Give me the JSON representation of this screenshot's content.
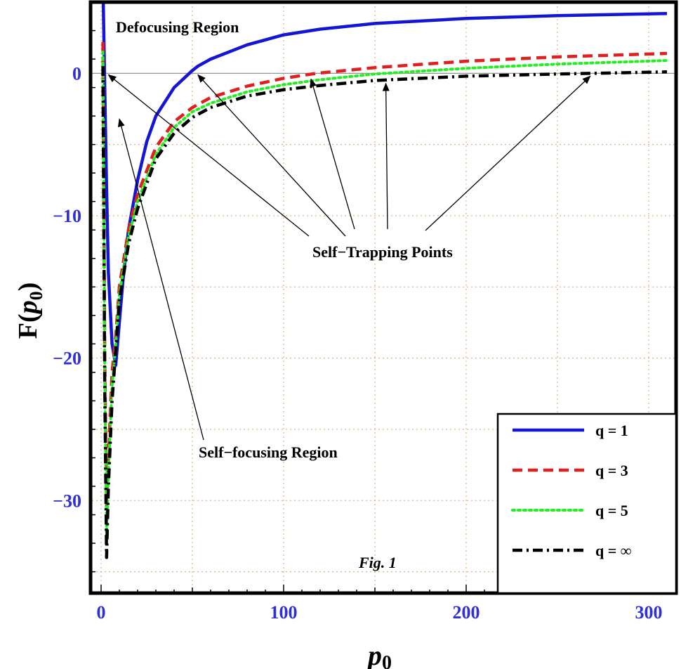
{
  "chart_data": {
    "type": "line",
    "title": "",
    "xlabel": "p",
    "xlabel_sub": "0",
    "ylabel_prefix": "F(",
    "ylabel_var": "p",
    "ylabel_sub": "0",
    "ylabel_suffix": ")",
    "xlim": [
      -5,
      315
    ],
    "ylim": [
      -36.5,
      5
    ],
    "x_ticks": [
      0,
      100,
      200,
      300
    ],
    "x_tick_labels": [
      "0",
      "100",
      "200",
      "300"
    ],
    "y_ticks": [
      0,
      -10,
      -20,
      -30
    ],
    "y_tick_labels": [
      "0",
      "−10",
      "−20",
      "−30"
    ],
    "grid": true,
    "legend_position": "bottom-right",
    "series": [
      {
        "name": "q = 1",
        "color": "#1515d4",
        "style": "solid",
        "x": [
          1.2,
          2,
          3,
          4,
          6,
          8,
          10,
          12,
          15,
          20,
          25,
          30,
          40,
          50,
          53,
          60,
          80,
          100,
          120,
          150,
          200,
          250,
          310
        ],
        "y": [
          5,
          -1,
          -8,
          -14,
          -19,
          -20.5,
          -17.5,
          -14.5,
          -11,
          -7.5,
          -4.8,
          -3,
          -1,
          0.2,
          0.5,
          1,
          2,
          2.7,
          3.1,
          3.5,
          3.85,
          4.05,
          4.2
        ]
      },
      {
        "name": "q = 3",
        "color": "#e02020",
        "style": "dashed",
        "x": [
          1,
          2,
          3,
          4,
          6,
          8,
          10,
          15,
          20,
          30,
          40,
          50,
          60,
          80,
          100,
          118,
          150,
          200,
          250,
          310
        ],
        "y": [
          2.2,
          -20,
          -30.5,
          -27,
          -21,
          -18.5,
          -15,
          -11,
          -8.5,
          -5.2,
          -3.4,
          -2.4,
          -1.7,
          -0.9,
          -0.35,
          0,
          0.4,
          0.85,
          1.15,
          1.4
        ]
      },
      {
        "name": "q = 5",
        "color": "#22ee22",
        "style": "dotted",
        "x": [
          1,
          2,
          3,
          4,
          6,
          8,
          10,
          15,
          20,
          30,
          40,
          50,
          60,
          80,
          100,
          120,
          150,
          200,
          250,
          310
        ],
        "y": [
          1.5,
          -21,
          -32.5,
          -28,
          -22,
          -19,
          -15.5,
          -11.5,
          -9,
          -5.7,
          -3.8,
          -2.7,
          -2.1,
          -1.3,
          -0.8,
          -0.45,
          -0.05,
          0.35,
          0.65,
          0.9
        ]
      },
      {
        "name": "q = ∞",
        "color": "#000000",
        "style": "dashdot",
        "x": [
          1,
          2,
          3,
          4,
          6,
          8,
          10,
          15,
          20,
          30,
          40,
          50,
          60,
          80,
          100,
          120,
          150,
          200,
          250,
          270,
          310
        ],
        "y": [
          0.5,
          -22,
          -34,
          -29,
          -23,
          -19.5,
          -16,
          -12,
          -9.5,
          -6,
          -4.2,
          -3.1,
          -2.4,
          -1.6,
          -1.15,
          -0.85,
          -0.5,
          -0.2,
          -0.05,
          0,
          0.1
        ]
      }
    ],
    "annotations": {
      "defocusing": "Defocusing Region",
      "self_trapping": "Self−Trapping Points",
      "self_focusing": "Self−focusing Region",
      "fig_label": "Fig. 1"
    },
    "arrows": {
      "self_trapping_targets": [
        [
          4,
          0
        ],
        [
          53,
          0
        ],
        [
          115,
          -0.3
        ],
        [
          156,
          -0.6
        ],
        [
          268,
          -0.1
        ]
      ],
      "self_focusing_target": [
        10,
        -3.2
      ]
    }
  }
}
